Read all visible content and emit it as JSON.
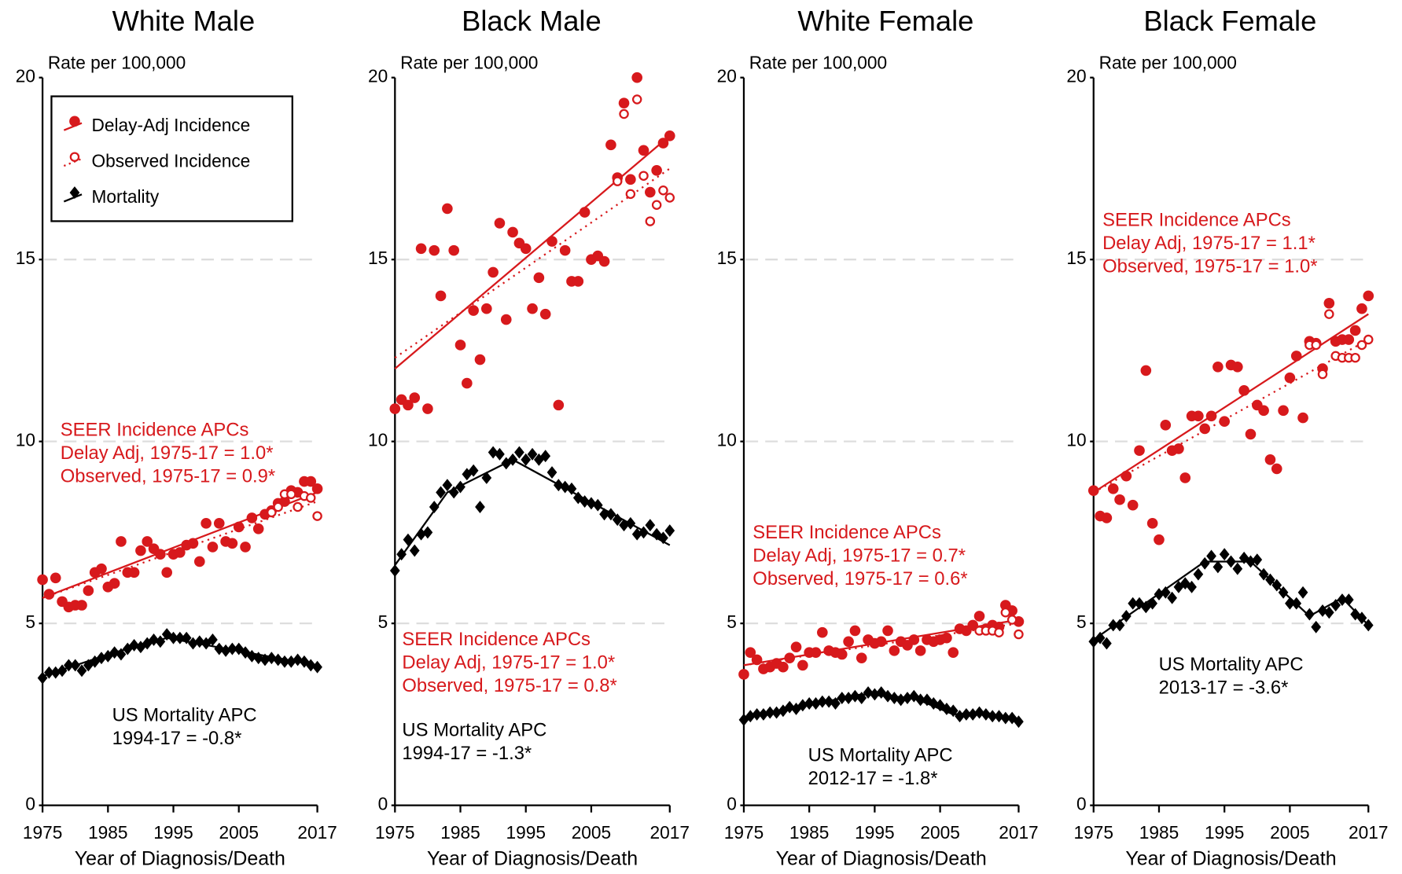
{
  "chart_data": [
    {
      "type": "scatter",
      "title": "White Male",
      "y_label": "Rate per 100,000",
      "x_label": "Year of Diagnosis/Death",
      "xlim": [
        1975,
        2017
      ],
      "xticks": [
        1975,
        1985,
        1995,
        2005,
        2017
      ],
      "ylim": [
        0,
        20
      ],
      "yticks": [
        0,
        5,
        10,
        15,
        20
      ],
      "grid": true,
      "legend": "upper left",
      "x": [
        1975,
        1976,
        1977,
        1978,
        1979,
        1980,
        1981,
        1982,
        1983,
        1984,
        1985,
        1986,
        1987,
        1988,
        1989,
        1990,
        1991,
        1992,
        1993,
        1994,
        1995,
        1996,
        1997,
        1998,
        1999,
        2000,
        2001,
        2002,
        2003,
        2004,
        2005,
        2006,
        2007,
        2008,
        2009,
        2010,
        2011,
        2012,
        2013,
        2014,
        2015,
        2016,
        2017
      ],
      "series": [
        {
          "name": "Delay-Adj Incidence",
          "color": "#d7191c",
          "marker": "filled-circle",
          "line": "solid",
          "values": [
            6.2,
            5.8,
            6.25,
            5.6,
            5.45,
            5.5,
            5.5,
            5.9,
            6.4,
            6.5,
            6.0,
            6.1,
            7.25,
            6.4,
            6.4,
            7.0,
            7.25,
            7.05,
            6.9,
            6.4,
            6.9,
            6.95,
            7.15,
            7.2,
            6.7,
            7.75,
            7.1,
            7.75,
            7.25,
            7.2,
            7.65,
            7.1,
            7.9,
            7.6,
            8.0,
            8.1,
            8.3,
            8.35,
            8.65,
            8.6,
            8.9,
            8.9,
            8.7
          ],
          "trend_x": [
            1975,
            2017
          ],
          "trend_values": [
            5.7,
            8.6
          ]
        },
        {
          "name": "Observed Incidence",
          "color": "#d7191c",
          "marker": "hollow-circle",
          "line": "dotted",
          "x": [
            2010,
            2011,
            2012,
            2013,
            2014,
            2015,
            2016,
            2017
          ],
          "values": [
            8.05,
            8.2,
            8.55,
            8.55,
            8.2,
            8.5,
            8.45,
            7.95
          ],
          "trend_x": [
            1975,
            2017
          ],
          "trend_values": [
            5.7,
            8.35
          ]
        },
        {
          "name": "Mortality",
          "color": "#000000",
          "marker": "diamond",
          "line": "solid",
          "values": [
            3.5,
            3.65,
            3.65,
            3.7,
            3.85,
            3.85,
            3.7,
            3.85,
            3.95,
            4.05,
            4.1,
            4.2,
            4.15,
            4.3,
            4.4,
            4.35,
            4.45,
            4.55,
            4.5,
            4.7,
            4.6,
            4.6,
            4.6,
            4.45,
            4.5,
            4.45,
            4.55,
            4.3,
            4.25,
            4.3,
            4.3,
            4.2,
            4.1,
            4.05,
            4.0,
            4.05,
            4.0,
            3.95,
            3.95,
            4.0,
            3.95,
            3.85,
            3.8
          ],
          "trend_x": [
            1975,
            1986,
            1994,
            2017
          ],
          "trend_values": [
            3.55,
            4.2,
            4.6,
            3.85
          ]
        }
      ],
      "annotations": [
        {
          "color": "#d7191c",
          "lines": [
            "SEER Incidence APCs",
            "Delay Adj, 1975-17 = 1.0*",
            "Observed, 1975-17 = 0.9*"
          ]
        },
        {
          "color": "#000000",
          "lines": [
            "US Mortality APC",
            "1994-17 = -0.8*"
          ]
        }
      ]
    },
    {
      "type": "scatter",
      "title": "Black Male",
      "y_label": "Rate per 100,000",
      "x_label": "Year of Diagnosis/Death",
      "xlim": [
        1975,
        2017
      ],
      "xticks": [
        1975,
        1985,
        1995,
        2005,
        2017
      ],
      "ylim": [
        0,
        20
      ],
      "yticks": [
        0,
        5,
        10,
        15,
        20
      ],
      "grid": true,
      "x": [
        1975,
        1976,
        1977,
        1978,
        1979,
        1980,
        1981,
        1982,
        1983,
        1984,
        1985,
        1986,
        1987,
        1988,
        1989,
        1990,
        1991,
        1992,
        1993,
        1994,
        1995,
        1996,
        1997,
        1998,
        1999,
        2000,
        2001,
        2002,
        2003,
        2004,
        2005,
        2006,
        2007,
        2008,
        2009,
        2010,
        2011,
        2012,
        2013,
        2014,
        2015,
        2016,
        2017
      ],
      "series": [
        {
          "color": "#d7191c",
          "marker": "filled-circle",
          "line": "solid",
          "values": [
            10.9,
            11.15,
            11.0,
            11.2,
            15.3,
            10.9,
            15.25,
            14.0,
            16.4,
            15.25,
            12.65,
            11.6,
            13.6,
            12.25,
            13.65,
            14.65,
            16.0,
            13.35,
            15.75,
            15.45,
            15.3,
            13.65,
            14.5,
            13.5,
            15.5,
            11.0,
            15.25,
            14.4,
            14.4,
            16.3,
            15.0,
            15.1,
            14.95,
            18.15,
            17.25,
            19.3,
            17.2,
            20.0,
            18.0,
            16.85,
            17.45,
            18.2,
            18.4
          ],
          "trend_x": [
            1975,
            2017
          ],
          "trend_values": [
            12.0,
            18.4
          ]
        },
        {
          "color": "#d7191c",
          "marker": "hollow-circle",
          "line": "dotted",
          "x": [
            2009,
            2010,
            2011,
            2012,
            2013,
            2014,
            2015,
            2016,
            2017
          ],
          "values": [
            17.15,
            19.0,
            16.8,
            19.4,
            17.3,
            16.05,
            16.5,
            16.9,
            16.7
          ],
          "trend_x": [
            1975,
            2017
          ],
          "trend_values": [
            12.3,
            17.5
          ]
        },
        {
          "color": "#000000",
          "marker": "diamond",
          "line": "solid",
          "values": [
            6.45,
            6.9,
            7.3,
            7.0,
            7.45,
            7.5,
            8.2,
            8.6,
            8.8,
            8.6,
            8.75,
            9.1,
            9.2,
            8.2,
            9.0,
            9.7,
            9.65,
            9.4,
            9.5,
            9.7,
            9.5,
            9.65,
            9.5,
            9.6,
            9.15,
            8.8,
            8.75,
            8.7,
            8.45,
            8.35,
            8.3,
            8.25,
            8.0,
            8.0,
            7.85,
            7.7,
            7.75,
            7.45,
            7.5,
            7.7,
            7.45,
            7.35,
            7.55
          ],
          "trend_x": [
            1975,
            1983,
            1993,
            2017
          ],
          "trend_values": [
            6.6,
            8.6,
            9.5,
            7.15
          ]
        }
      ],
      "annotations": [
        {
          "color": "#d7191c",
          "lines": [
            "SEER Incidence APCs",
            "Delay Adj, 1975-17 = 1.0*",
            "Observed, 1975-17 = 0.8*"
          ]
        },
        {
          "color": "#000000",
          "lines": [
            "US Mortality APC",
            "1994-17 = -1.3*"
          ]
        }
      ]
    },
    {
      "type": "scatter",
      "title": "White Female",
      "y_label": "Rate per 100,000",
      "x_label": "Year of Diagnosis/Death",
      "xlim": [
        1975,
        2017
      ],
      "xticks": [
        1975,
        1985,
        1995,
        2005,
        2017
      ],
      "ylim": [
        0,
        20
      ],
      "yticks": [
        0,
        5,
        10,
        15,
        20
      ],
      "grid": true,
      "x": [
        1975,
        1976,
        1977,
        1978,
        1979,
        1980,
        1981,
        1982,
        1983,
        1984,
        1985,
        1986,
        1987,
        1988,
        1989,
        1990,
        1991,
        1992,
        1993,
        1994,
        1995,
        1996,
        1997,
        1998,
        1999,
        2000,
        2001,
        2002,
        2003,
        2004,
        2005,
        2006,
        2007,
        2008,
        2009,
        2010,
        2011,
        2012,
        2013,
        2014,
        2015,
        2016,
        2017
      ],
      "series": [
        {
          "color": "#d7191c",
          "marker": "filled-circle",
          "line": "solid",
          "values": [
            3.6,
            4.2,
            4.0,
            3.75,
            3.8,
            3.9,
            3.8,
            4.05,
            4.35,
            3.85,
            4.2,
            4.2,
            4.75,
            4.25,
            4.2,
            4.15,
            4.5,
            4.8,
            4.05,
            4.55,
            4.45,
            4.5,
            4.8,
            4.25,
            4.5,
            4.4,
            4.55,
            4.25,
            4.55,
            4.5,
            4.55,
            4.6,
            4.2,
            4.85,
            4.8,
            4.95,
            5.2,
            4.85,
            4.95,
            4.9,
            5.5,
            5.35,
            5.05
          ],
          "trend_x": [
            1975,
            2017
          ],
          "trend_values": [
            3.85,
            5.1
          ]
        },
        {
          "color": "#d7191c",
          "marker": "hollow-circle",
          "line": "dotted",
          "x": [
            2011,
            2012,
            2013,
            2014,
            2015,
            2016,
            2017
          ],
          "values": [
            4.8,
            4.8,
            4.8,
            4.75,
            5.3,
            5.1,
            4.7
          ],
          "trend_x": [
            1975,
            2017
          ],
          "trend_values": [
            3.85,
            5.0
          ]
        },
        {
          "color": "#000000",
          "marker": "diamond",
          "line": "solid",
          "values": [
            2.35,
            2.45,
            2.5,
            2.5,
            2.55,
            2.55,
            2.6,
            2.7,
            2.65,
            2.75,
            2.8,
            2.8,
            2.85,
            2.85,
            2.8,
            2.95,
            2.95,
            3.0,
            2.95,
            3.1,
            3.05,
            3.1,
            3.0,
            2.95,
            2.9,
            2.95,
            3.0,
            2.9,
            2.9,
            2.8,
            2.75,
            2.65,
            2.6,
            2.45,
            2.5,
            2.5,
            2.55,
            2.5,
            2.45,
            2.45,
            2.4,
            2.4,
            2.3
          ],
          "trend_x": [
            1975,
            1993,
            2001,
            2007,
            2012,
            2017
          ],
          "trend_values": [
            2.4,
            3.05,
            2.95,
            2.5,
            2.55,
            2.3
          ]
        }
      ],
      "annotations": [
        {
          "color": "#d7191c",
          "lines": [
            "SEER Incidence APCs",
            "Delay Adj, 1975-17 = 0.7*",
            "Observed, 1975-17 = 0.6*"
          ]
        },
        {
          "color": "#000000",
          "lines": [
            "US Mortality APC",
            "2012-17 = -1.8*"
          ]
        }
      ]
    },
    {
      "type": "scatter",
      "title": "Black Female",
      "y_label": "Rate per 100,000",
      "x_label": "Year of Diagnosis/Death",
      "xlim": [
        1975,
        2017
      ],
      "xticks": [
        1975,
        1985,
        1995,
        2005,
        2017
      ],
      "ylim": [
        0,
        20
      ],
      "yticks": [
        0,
        5,
        10,
        15,
        20
      ],
      "grid": true,
      "x": [
        1975,
        1976,
        1977,
        1978,
        1979,
        1980,
        1981,
        1982,
        1983,
        1984,
        1985,
        1986,
        1987,
        1988,
        1989,
        1990,
        1991,
        1992,
        1993,
        1994,
        1995,
        1996,
        1997,
        1998,
        1999,
        2000,
        2001,
        2002,
        2003,
        2004,
        2005,
        2006,
        2007,
        2008,
        2009,
        2010,
        2011,
        2012,
        2013,
        2014,
        2015,
        2016,
        2017
      ],
      "series": [
        {
          "color": "#d7191c",
          "marker": "filled-circle",
          "line": "solid",
          "values": [
            8.65,
            7.95,
            7.9,
            8.7,
            8.4,
            9.05,
            8.25,
            9.75,
            11.95,
            7.75,
            7.3,
            10.45,
            9.75,
            9.8,
            9.0,
            10.7,
            10.7,
            10.35,
            10.7,
            12.05,
            10.55,
            12.1,
            12.05,
            11.4,
            10.2,
            11.0,
            10.85,
            9.5,
            9.25,
            10.85,
            11.75,
            12.35,
            10.65,
            12.75,
            12.7,
            12.0,
            13.8,
            12.75,
            12.8,
            12.8,
            13.05,
            13.65,
            14.0
          ],
          "trend_x": [
            1975,
            2017
          ],
          "trend_values": [
            8.6,
            13.5
          ]
        },
        {
          "color": "#d7191c",
          "marker": "hollow-circle",
          "line": "dotted",
          "x": [
            2008,
            2009,
            2010,
            2011,
            2012,
            2013,
            2014,
            2015,
            2016,
            2017
          ],
          "values": [
            12.65,
            12.65,
            11.85,
            13.5,
            12.35,
            12.3,
            12.3,
            12.3,
            12.65,
            12.8
          ],
          "trend_x": [
            1975,
            2017
          ],
          "trend_values": [
            8.6,
            12.8
          ]
        },
        {
          "color": "#000000",
          "marker": "diamond",
          "line": "solid",
          "values": [
            4.5,
            4.6,
            4.45,
            4.95,
            4.95,
            5.2,
            5.55,
            5.55,
            5.45,
            5.55,
            5.8,
            5.85,
            5.7,
            6.0,
            6.1,
            6.0,
            6.35,
            6.65,
            6.85,
            6.55,
            6.9,
            6.7,
            6.5,
            6.8,
            6.7,
            6.75,
            6.35,
            6.2,
            6.05,
            5.85,
            5.55,
            5.55,
            5.85,
            5.25,
            4.9,
            5.35,
            5.3,
            5.5,
            5.65,
            5.65,
            5.25,
            5.15,
            4.95
          ],
          "trend_x": [
            1975,
            1992,
            1999,
            2008,
            2013,
            2017
          ],
          "trend_values": [
            4.55,
            6.7,
            6.7,
            5.2,
            5.7,
            4.95
          ]
        }
      ],
      "annotations": [
        {
          "color": "#d7191c",
          "lines": [
            "SEER Incidence APCs",
            "Delay Adj, 1975-17 = 1.1*",
            "Observed, 1975-17 = 1.0*"
          ]
        },
        {
          "color": "#000000",
          "lines": [
            "US Mortality APC",
            "2013-17 = -3.6*"
          ]
        }
      ]
    }
  ]
}
